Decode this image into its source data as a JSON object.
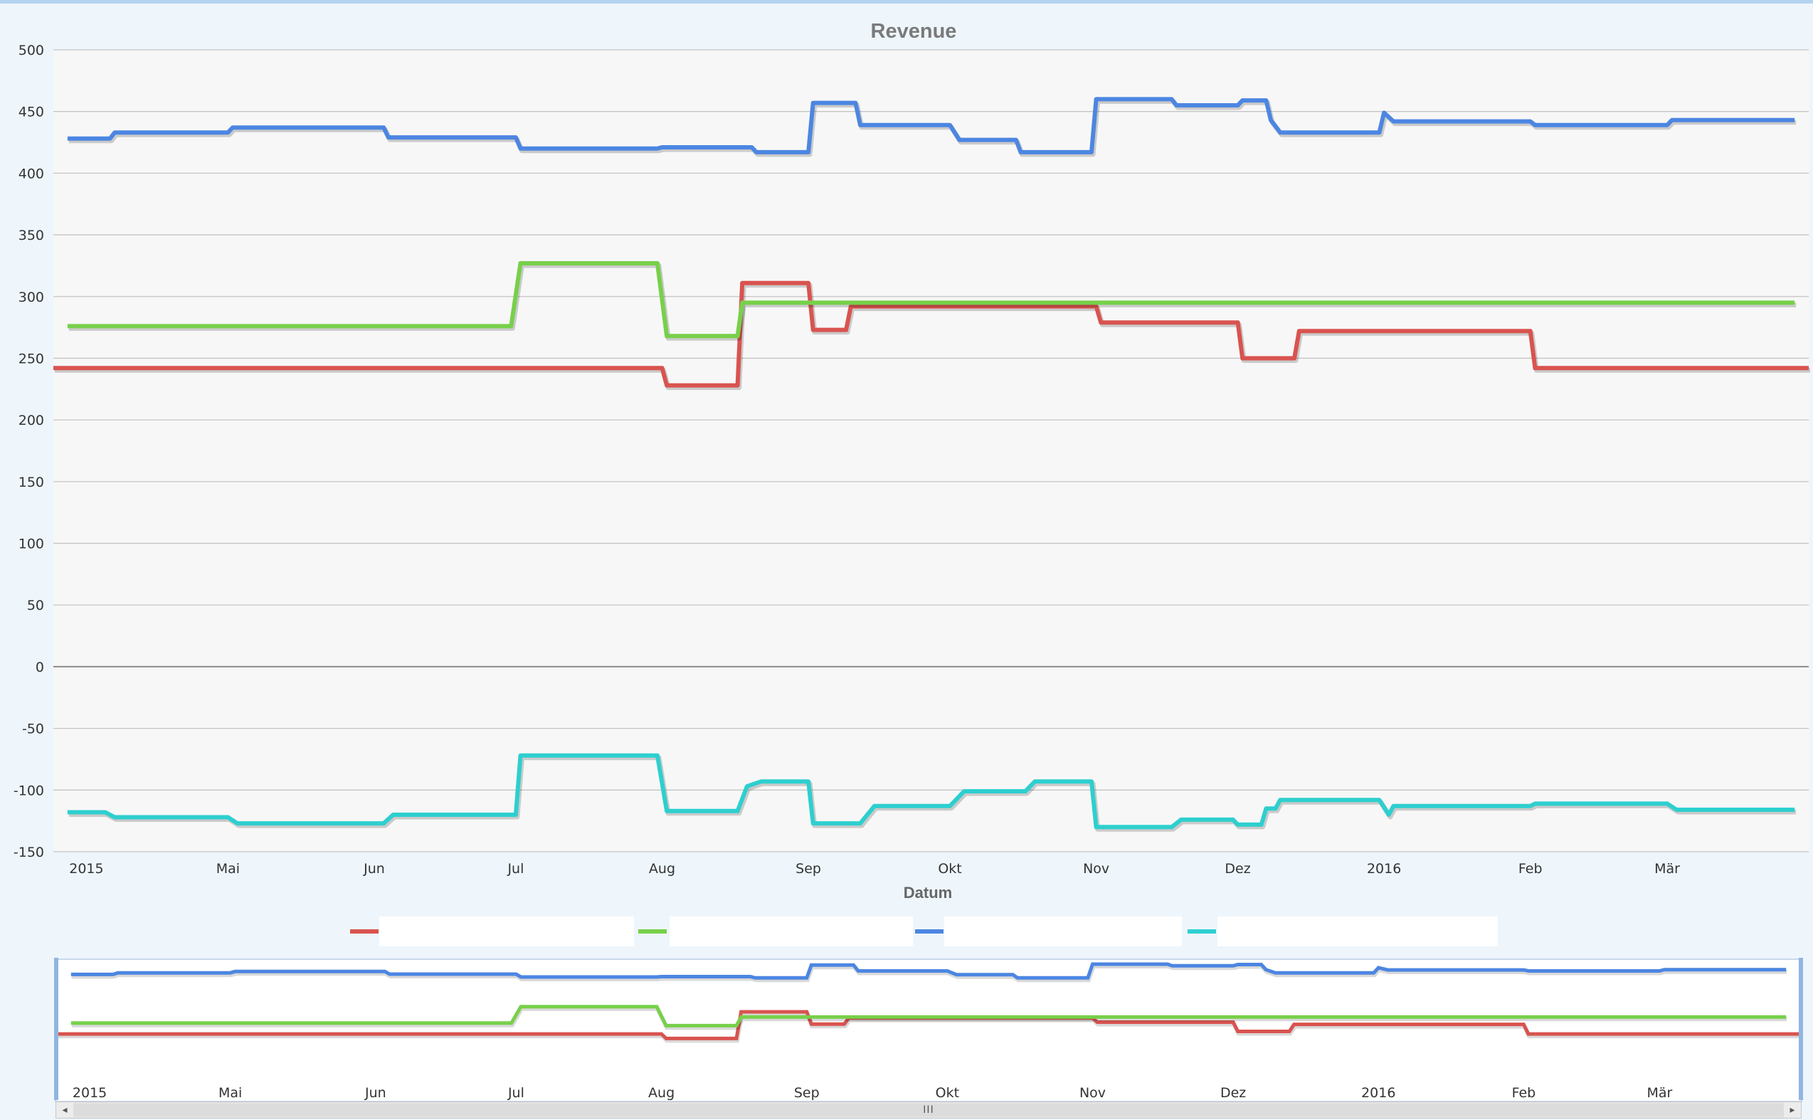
{
  "chart_data": {
    "type": "line",
    "step": true,
    "title": "Revenue",
    "xlabel": "Datum",
    "ylabel": "",
    "ylim": [
      -150,
      500
    ],
    "yticks": [
      500,
      450,
      400,
      350,
      300,
      250,
      200,
      150,
      100,
      50,
      0,
      -50,
      -100,
      -150
    ],
    "xlim": [
      "2015-03-25",
      "2016-03-31"
    ],
    "xticks": [
      {
        "label": "2015",
        "date": "2015-04-01"
      },
      {
        "label": "Mai",
        "date": "2015-05-01"
      },
      {
        "label": "Jun",
        "date": "2015-06-01"
      },
      {
        "label": "Jul",
        "date": "2015-07-01"
      },
      {
        "label": "Aug",
        "date": "2015-08-01"
      },
      {
        "label": "Sep",
        "date": "2015-09-01"
      },
      {
        "label": "Okt",
        "date": "2015-10-01"
      },
      {
        "label": "Nov",
        "date": "2015-11-01"
      },
      {
        "label": "Dez",
        "date": "2015-12-01"
      },
      {
        "label": "2016",
        "date": "2016-01-01"
      },
      {
        "label": "Feb",
        "date": "2016-02-01"
      },
      {
        "label": "Mär",
        "date": "2016-03-01"
      }
    ],
    "grid": true,
    "legend_position": "bottom",
    "series": [
      {
        "color": "#d9534f",
        "points": [
          [
            "2015-03-25",
            242
          ],
          [
            "2015-08-01",
            242
          ],
          [
            "2015-08-02",
            228
          ],
          [
            "2015-08-17",
            228
          ],
          [
            "2015-08-18",
            311
          ],
          [
            "2015-09-01",
            311
          ],
          [
            "2015-09-02",
            273
          ],
          [
            "2015-09-09",
            273
          ],
          [
            "2015-09-10",
            292
          ],
          [
            "2015-11-01",
            292
          ],
          [
            "2015-11-02",
            279
          ],
          [
            "2015-12-01",
            279
          ],
          [
            "2015-12-02",
            250
          ],
          [
            "2015-12-13",
            250
          ],
          [
            "2015-12-14",
            272
          ],
          [
            "2016-02-01",
            272
          ],
          [
            "2016-02-02",
            242
          ],
          [
            "2016-03-31",
            242
          ]
        ]
      },
      {
        "color": "#77d04a",
        "points": [
          [
            "2015-03-28",
            276
          ],
          [
            "2015-06-30",
            276
          ],
          [
            "2015-07-02",
            327
          ],
          [
            "2015-07-31",
            327
          ],
          [
            "2015-08-02",
            268
          ],
          [
            "2015-08-17",
            268
          ],
          [
            "2015-08-18",
            295
          ],
          [
            "2016-03-28",
            295
          ]
        ]
      },
      {
        "color": "#4c86e2",
        "points": [
          [
            "2015-03-28",
            428
          ],
          [
            "2015-04-06",
            428
          ],
          [
            "2015-04-07",
            433
          ],
          [
            "2015-05-01",
            433
          ],
          [
            "2015-05-02",
            437
          ],
          [
            "2015-06-03",
            437
          ],
          [
            "2015-06-04",
            429
          ],
          [
            "2015-07-01",
            429
          ],
          [
            "2015-07-02",
            420
          ],
          [
            "2015-07-31",
            420
          ],
          [
            "2015-08-01",
            421
          ],
          [
            "2015-08-20",
            421
          ],
          [
            "2015-08-21",
            417
          ],
          [
            "2015-09-01",
            417
          ],
          [
            "2015-09-02",
            457
          ],
          [
            "2015-09-11",
            457
          ],
          [
            "2015-09-12",
            439
          ],
          [
            "2015-10-01",
            439
          ],
          [
            "2015-10-03",
            427
          ],
          [
            "2015-10-15",
            427
          ],
          [
            "2015-10-16",
            417
          ],
          [
            "2015-10-31",
            417
          ],
          [
            "2015-11-01",
            460
          ],
          [
            "2015-11-17",
            460
          ],
          [
            "2015-11-18",
            455
          ],
          [
            "2015-12-01",
            455
          ],
          [
            "2015-12-02",
            459
          ],
          [
            "2015-12-07",
            459
          ],
          [
            "2015-12-08",
            443
          ],
          [
            "2015-12-10",
            433
          ],
          [
            "2015-12-31",
            433
          ],
          [
            "2016-01-01",
            449
          ],
          [
            "2016-01-03",
            442
          ],
          [
            "2016-02-01",
            442
          ],
          [
            "2016-02-02",
            439
          ],
          [
            "2016-03-01",
            439
          ],
          [
            "2016-03-02",
            443
          ],
          [
            "2016-03-28",
            443
          ]
        ]
      },
      {
        "color": "#2ecfcf",
        "points": [
          [
            "2015-03-28",
            -118
          ],
          [
            "2015-04-05",
            -118
          ],
          [
            "2015-04-07",
            -122
          ],
          [
            "2015-05-01",
            -122
          ],
          [
            "2015-05-03",
            -127
          ],
          [
            "2015-06-03",
            -127
          ],
          [
            "2015-06-05",
            -120
          ],
          [
            "2015-07-01",
            -120
          ],
          [
            "2015-07-02",
            -72
          ],
          [
            "2015-07-31",
            -72
          ],
          [
            "2015-08-02",
            -117
          ],
          [
            "2015-08-17",
            -117
          ],
          [
            "2015-08-19",
            -97
          ],
          [
            "2015-08-22",
            -93
          ],
          [
            "2015-09-01",
            -93
          ],
          [
            "2015-09-02",
            -127
          ],
          [
            "2015-09-12",
            -127
          ],
          [
            "2015-09-15",
            -113
          ],
          [
            "2015-10-01",
            -113
          ],
          [
            "2015-10-03",
            -105
          ],
          [
            "2015-10-04",
            -101
          ],
          [
            "2015-10-17",
            -101
          ],
          [
            "2015-10-19",
            -93
          ],
          [
            "2015-10-31",
            -93
          ],
          [
            "2015-11-01",
            -130
          ],
          [
            "2015-11-17",
            -130
          ],
          [
            "2015-11-19",
            -124
          ],
          [
            "2015-11-30",
            -124
          ],
          [
            "2015-12-01",
            -128
          ],
          [
            "2015-12-06",
            -128
          ],
          [
            "2015-12-07",
            -115
          ],
          [
            "2015-12-09",
            -115
          ],
          [
            "2015-12-10",
            -108
          ],
          [
            "2015-12-31",
            -108
          ],
          [
            "2016-01-02",
            -120
          ],
          [
            "2016-01-03",
            -113
          ],
          [
            "2016-02-01",
            -113
          ],
          [
            "2016-02-02",
            -111
          ],
          [
            "2016-03-01",
            -111
          ],
          [
            "2016-03-03",
            -116
          ],
          [
            "2016-03-28",
            -116
          ]
        ]
      }
    ],
    "navigator": {
      "ylim": [
        -150,
        500
      ],
      "xlim": [
        "2015-03-25",
        "2016-03-31"
      ]
    }
  },
  "scrollbar": {
    "left_arrow": "◂",
    "right_arrow": "▸",
    "grip": "III"
  }
}
